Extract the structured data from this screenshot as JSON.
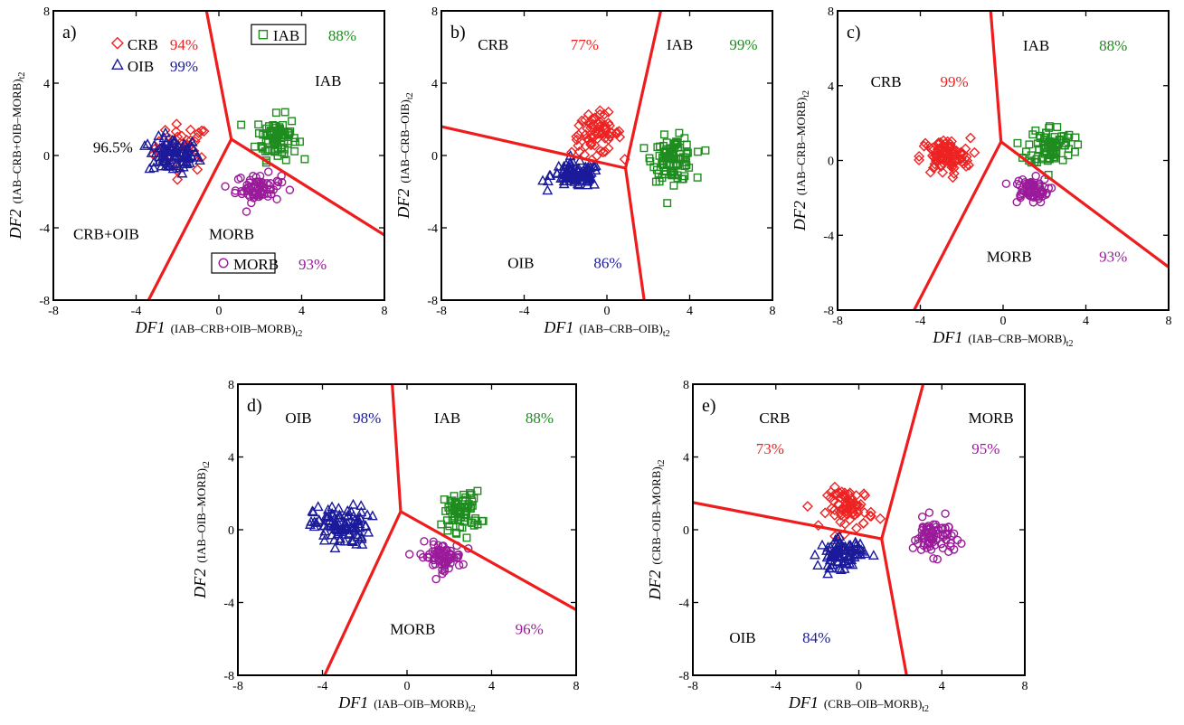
{
  "colors": {
    "CRB": "#ee2222",
    "OIB": "#1a1a9a",
    "IAB": "#1e8c1e",
    "MORB": "#9a1a9a",
    "boundary": "#ee1c1c",
    "text": "#000000"
  },
  "chart_data": [
    {
      "type": "scatter",
      "panel_label": "a)",
      "xlabel_main": "DF1",
      "xlabel_sub": "(IAB–CRB+OIB–MORB)",
      "ylabel_main": "DF2",
      "ylabel_sub": "(IAB–CRB+OIB–MORB)",
      "subscript": "t2",
      "xlim": [
        -8,
        8
      ],
      "ylim": [
        -8,
        8
      ],
      "xticks": [
        "-8",
        "-4",
        "0",
        "4",
        "8"
      ],
      "yticks": [
        "-8",
        "-4",
        "0",
        "4",
        "8"
      ],
      "legend": [
        {
          "name": "CRB",
          "percent": "94%"
        },
        {
          "name": "OIB",
          "percent": "99%"
        },
        {
          "name": "IAB",
          "percent": "88%"
        },
        {
          "name": "MORB",
          "percent": "93%"
        }
      ],
      "annotations": [
        "96.5%",
        "IAB",
        "CRB+OIB",
        "MORB"
      ],
      "boundaries": [
        [
          [
            -0.6,
            8
          ],
          [
            0.6,
            0.9
          ]
        ],
        [
          [
            0.6,
            0.9
          ],
          [
            -3.4,
            -8
          ]
        ],
        [
          [
            0.6,
            0.9
          ],
          [
            8,
            -4.4
          ]
        ]
      ],
      "clusters": [
        {
          "name": "CRB",
          "center": [
            -1.8,
            0.4
          ],
          "spread": [
            1.2,
            1.2
          ],
          "count": 45
        },
        {
          "name": "OIB",
          "center": [
            -2.2,
            0.0
          ],
          "spread": [
            1.1,
            0.9
          ],
          "count": 85
        },
        {
          "name": "IAB",
          "center": [
            2.8,
            1.0
          ],
          "spread": [
            0.9,
            1.1
          ],
          "count": 80
        },
        {
          "name": "MORB",
          "center": [
            1.9,
            -1.8
          ],
          "spread": [
            1.0,
            0.7
          ],
          "count": 70
        }
      ]
    },
    {
      "type": "scatter",
      "panel_label": "b)",
      "xlabel_main": "DF1",
      "xlabel_sub": "(IAB–CRB–OIB)",
      "ylabel_main": "DF2",
      "ylabel_sub": "(IAB–CRB–OIB)",
      "subscript": "t2",
      "xlim": [
        -8,
        8
      ],
      "ylim": [
        -8,
        8
      ],
      "xticks": [
        "-8",
        "-4",
        "0",
        "4",
        "8"
      ],
      "yticks": [
        "-8",
        "-4",
        "0",
        "4",
        "8"
      ],
      "legend": [],
      "annotations": [
        "CRB",
        "77%",
        "IAB",
        "99%",
        "OIB",
        "86%"
      ],
      "boundaries": [
        [
          [
            -8,
            1.6
          ],
          [
            0.9,
            -0.7
          ]
        ],
        [
          [
            0.9,
            -0.7
          ],
          [
            2.6,
            8
          ]
        ],
        [
          [
            0.9,
            -0.7
          ],
          [
            1.8,
            -8
          ]
        ]
      ],
      "clusters": [
        {
          "name": "CRB",
          "center": [
            -0.5,
            1.2
          ],
          "spread": [
            1.1,
            1.0
          ],
          "count": 70
        },
        {
          "name": "OIB",
          "center": [
            -1.5,
            -1.1
          ],
          "spread": [
            1.1,
            0.6
          ],
          "count": 95
        },
        {
          "name": "IAB",
          "center": [
            3.2,
            -0.2
          ],
          "spread": [
            0.9,
            1.1
          ],
          "count": 95
        }
      ]
    },
    {
      "type": "scatter",
      "panel_label": "c)",
      "xlabel_main": "DF1",
      "xlabel_sub": "(IAB–CRB–MORB)",
      "ylabel_main": "DF2",
      "ylabel_sub": "(IAB–CRB–MORB)",
      "subscript": "t2",
      "xlim": [
        -8,
        8
      ],
      "ylim": [
        -8,
        8
      ],
      "xticks": [
        "-8",
        "-4",
        "0",
        "4",
        "8"
      ],
      "yticks": [
        "-8",
        "-4",
        "0",
        "4",
        "8"
      ],
      "legend": [],
      "annotations": [
        "CRB",
        "99%",
        "IAB",
        "88%",
        "MORB",
        "93%"
      ],
      "boundaries": [
        [
          [
            -0.6,
            8
          ],
          [
            -0.1,
            1.0
          ]
        ],
        [
          [
            -0.1,
            1.0
          ],
          [
            -4.3,
            -8
          ]
        ],
        [
          [
            -0.1,
            1.0
          ],
          [
            8,
            -5.7
          ]
        ]
      ],
      "clusters": [
        {
          "name": "CRB",
          "center": [
            -2.8,
            0.2
          ],
          "spread": [
            1.1,
            0.9
          ],
          "count": 95
        },
        {
          "name": "IAB",
          "center": [
            2.3,
            0.8
          ],
          "spread": [
            1.0,
            1.0
          ],
          "count": 80
        },
        {
          "name": "MORB",
          "center": [
            1.3,
            -1.6
          ],
          "spread": [
            0.8,
            0.6
          ],
          "count": 65
        }
      ]
    },
    {
      "type": "scatter",
      "panel_label": "d)",
      "xlabel_main": "DF1",
      "xlabel_sub": "(IAB–OIB–MORB)",
      "ylabel_main": "DF2",
      "ylabel_sub": "(IAB–OIB–MORB)",
      "subscript": "t2",
      "xlim": [
        -8,
        8
      ],
      "ylim": [
        -8,
        8
      ],
      "xticks": [
        "-8",
        "-4",
        "0",
        "4",
        "8"
      ],
      "yticks": [
        "-8",
        "-4",
        "0",
        "4",
        "8"
      ],
      "legend": [],
      "annotations": [
        "OIB",
        "98%",
        "IAB",
        "88%",
        "MORB",
        "96%"
      ],
      "boundaries": [
        [
          [
            -0.7,
            8
          ],
          [
            -0.3,
            1.0
          ]
        ],
        [
          [
            -0.3,
            1.0
          ],
          [
            -3.9,
            -8
          ]
        ],
        [
          [
            -0.3,
            1.0
          ],
          [
            8,
            -4.4
          ]
        ]
      ],
      "clusters": [
        {
          "name": "OIB",
          "center": [
            -3.1,
            0.2
          ],
          "spread": [
            1.2,
            1.0
          ],
          "count": 100
        },
        {
          "name": "IAB",
          "center": [
            2.6,
            1.0
          ],
          "spread": [
            0.8,
            1.0
          ],
          "count": 75
        },
        {
          "name": "MORB",
          "center": [
            1.6,
            -1.5
          ],
          "spread": [
            0.9,
            0.7
          ],
          "count": 70
        }
      ]
    },
    {
      "type": "scatter",
      "panel_label": "e)",
      "xlabel_main": "DF1",
      "xlabel_sub": "(CRB–OIB–MORB)",
      "ylabel_main": "DF2",
      "ylabel_sub": "(CRB–OIB–MORB)",
      "subscript": "t2",
      "xlim": [
        -8,
        8
      ],
      "ylim": [
        -8,
        8
      ],
      "xticks": [
        "-8",
        "-4",
        "0",
        "4",
        "8"
      ],
      "yticks": [
        "-8",
        "-4",
        "0",
        "4",
        "8"
      ],
      "legend": [],
      "annotations": [
        "CRB",
        "73%",
        "MORB",
        "95%",
        "OIB",
        "84%"
      ],
      "boundaries": [
        [
          [
            -8,
            1.5
          ],
          [
            1.1,
            -0.5
          ]
        ],
        [
          [
            1.1,
            -0.5
          ],
          [
            3.1,
            8
          ]
        ],
        [
          [
            1.1,
            -0.5
          ],
          [
            2.3,
            -8
          ]
        ]
      ],
      "clusters": [
        {
          "name": "CRB",
          "center": [
            -0.4,
            1.2
          ],
          "spread": [
            1.0,
            1.0
          ],
          "count": 70
        },
        {
          "name": "OIB",
          "center": [
            -0.8,
            -1.3
          ],
          "spread": [
            1.0,
            0.7
          ],
          "count": 85
        },
        {
          "name": "MORB",
          "center": [
            3.6,
            -0.4
          ],
          "spread": [
            0.9,
            0.9
          ],
          "count": 80
        }
      ]
    }
  ]
}
